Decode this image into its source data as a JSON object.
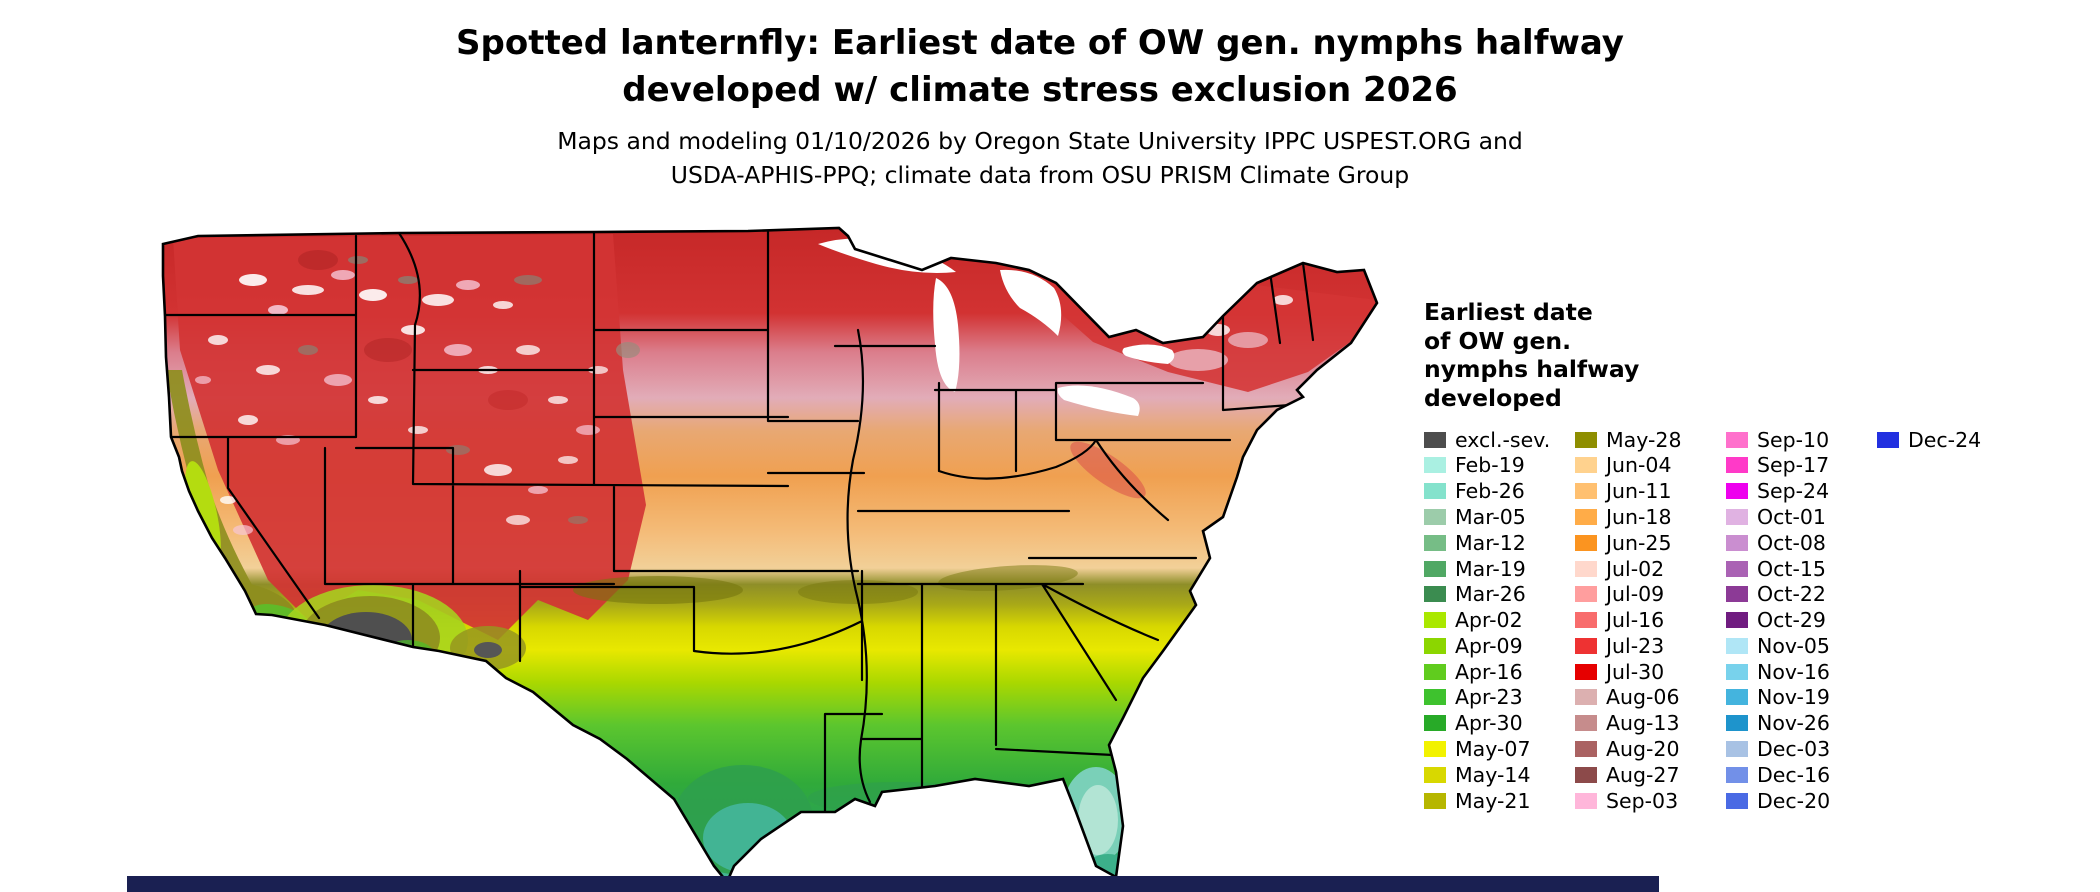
{
  "title": {
    "line1": "Spotted lanternfly: Earliest date of OW gen. nymphs halfway",
    "line2": "developed w/ climate stress exclusion 2026"
  },
  "subtitle": {
    "line1": "Maps and modeling 01/10/2026 by Oregon State University IPPC USPEST.ORG and",
    "line2": "USDA-APHIS-PPQ; climate data from OSU PRISM Climate Group"
  },
  "map": {
    "region": "Continental United States",
    "type": "raster-climate-model-map"
  },
  "legend": {
    "title_lines": [
      "Earliest date",
      "of OW gen.",
      "nymphs halfway",
      "developed"
    ],
    "columns": [
      {
        "entries": [
          {
            "label": "excl.-sev.",
            "color": "#4d4d4d"
          },
          {
            "label": "Feb-19",
            "color": "#aaf0e2"
          },
          {
            "label": "Feb-26",
            "color": "#84e2cc"
          },
          {
            "label": "Mar-05",
            "color": "#9cccaa"
          },
          {
            "label": "Mar-12",
            "color": "#76bd86"
          },
          {
            "label": "Mar-19",
            "color": "#50a864"
          },
          {
            "label": "Mar-26",
            "color": "#3b8c50"
          },
          {
            "label": "Apr-02",
            "color": "#aae800"
          },
          {
            "label": "Apr-09",
            "color": "#8cd600"
          },
          {
            "label": "Apr-16",
            "color": "#60cc1e"
          },
          {
            "label": "Apr-23",
            "color": "#3ec22e"
          },
          {
            "label": "Apr-30",
            "color": "#28aa28"
          },
          {
            "label": "May-07",
            "color": "#f2f200"
          },
          {
            "label": "May-14",
            "color": "#d8d800"
          },
          {
            "label": "May-21",
            "color": "#b6b600"
          }
        ]
      },
      {
        "entries": [
          {
            "label": "May-28",
            "color": "#8e8e00"
          },
          {
            "label": "Jun-04",
            "color": "#ffd28e"
          },
          {
            "label": "Jun-11",
            "color": "#ffc070"
          },
          {
            "label": "Jun-18",
            "color": "#ffac48"
          },
          {
            "label": "Jun-25",
            "color": "#fb9420"
          },
          {
            "label": "Jul-02",
            "color": "#ffd8cc"
          },
          {
            "label": "Jul-09",
            "color": "#ff9e9e"
          },
          {
            "label": "Jul-16",
            "color": "#f86c6c"
          },
          {
            "label": "Jul-23",
            "color": "#ee3232"
          },
          {
            "label": "Jul-30",
            "color": "#e60000"
          },
          {
            "label": "Aug-06",
            "color": "#dcb0b0"
          },
          {
            "label": "Aug-13",
            "color": "#c68c8c"
          },
          {
            "label": "Aug-20",
            "color": "#aa6262"
          },
          {
            "label": "Aug-27",
            "color": "#8c4a4a"
          },
          {
            "label": "Sep-03",
            "color": "#ffb6da"
          }
        ]
      },
      {
        "entries": [
          {
            "label": "Sep-10",
            "color": "#ff70cc"
          },
          {
            "label": "Sep-17",
            "color": "#ff3ac8"
          },
          {
            "label": "Sep-24",
            "color": "#ee00ee"
          },
          {
            "label": "Oct-01",
            "color": "#e0b2e2"
          },
          {
            "label": "Oct-08",
            "color": "#ca8ed0"
          },
          {
            "label": "Oct-15",
            "color": "#aa62b4"
          },
          {
            "label": "Oct-22",
            "color": "#8c3a96"
          },
          {
            "label": "Oct-29",
            "color": "#701c80"
          },
          {
            "label": "Nov-05",
            "color": "#b0e6f6"
          },
          {
            "label": "Nov-16",
            "color": "#78d2ec"
          },
          {
            "label": "Nov-19",
            "color": "#44b4de"
          },
          {
            "label": "Nov-26",
            "color": "#1e94cc"
          },
          {
            "label": "Dec-03",
            "color": "#a8c2e4"
          },
          {
            "label": "Dec-16",
            "color": "#7290e8"
          },
          {
            "label": "Dec-20",
            "color": "#4a6ae4"
          }
        ]
      },
      {
        "entries": [
          {
            "label": "Dec-24",
            "color": "#2230e0"
          }
        ]
      }
    ]
  },
  "footer_bar": {
    "color": "#1a2052"
  }
}
